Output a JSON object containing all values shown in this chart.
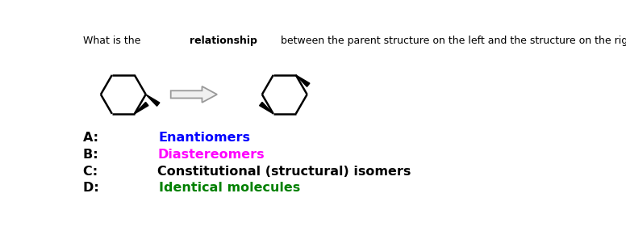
{
  "question_normal": "What is the ",
  "question_bold": "relationship",
  "question_rest": " between the parent structure on the left and the structure on the right?",
  "answer_lines": [
    {
      "prefix": "A: ",
      "answer": "Enantiomers",
      "answer_color": "#0000FF"
    },
    {
      "prefix": "B: ",
      "answer": "Diastereomers",
      "answer_color": "#FF00FF"
    },
    {
      "prefix": "C: ",
      "answer": "Constitutional (structural) isomers",
      "answer_color": "#000000"
    },
    {
      "prefix": "D: ",
      "answer": "Identical molecules",
      "answer_color": "#008000"
    }
  ],
  "bg_color": "#FFFFFF",
  "figsize": [
    7.76,
    2.81
  ],
  "dpi": 100
}
